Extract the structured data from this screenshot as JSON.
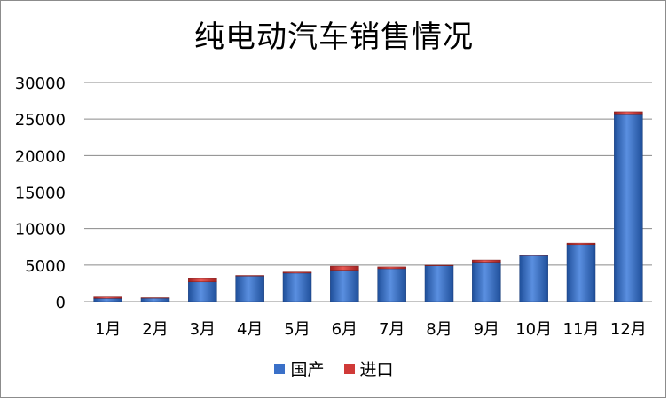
{
  "chart_data": {
    "type": "bar",
    "stacked": true,
    "title": "纯电动汽车销售情况",
    "categories": [
      "1月",
      "2月",
      "3月",
      "4月",
      "5月",
      "6月",
      "7月",
      "8月",
      "9月",
      "10月",
      "11月",
      "12月"
    ],
    "series": [
      {
        "name": "国产",
        "color": "#3a70c8",
        "values": [
          450,
          480,
          2700,
          3500,
          3900,
          4300,
          4500,
          4900,
          5400,
          6300,
          7800,
          25600
        ]
      },
      {
        "name": "进口",
        "color": "#d03a38",
        "values": [
          200,
          60,
          450,
          80,
          150,
          550,
          250,
          80,
          300,
          50,
          200,
          400
        ]
      }
    ],
    "ylim": [
      0,
      30000
    ],
    "yticks": [
      "0",
      "5000",
      "10000",
      "15000",
      "20000",
      "25000",
      "30000"
    ],
    "ytick_values": [
      0,
      5000,
      10000,
      15000,
      20000,
      25000,
      30000
    ],
    "grid": true,
    "legend_position": "bottom"
  }
}
